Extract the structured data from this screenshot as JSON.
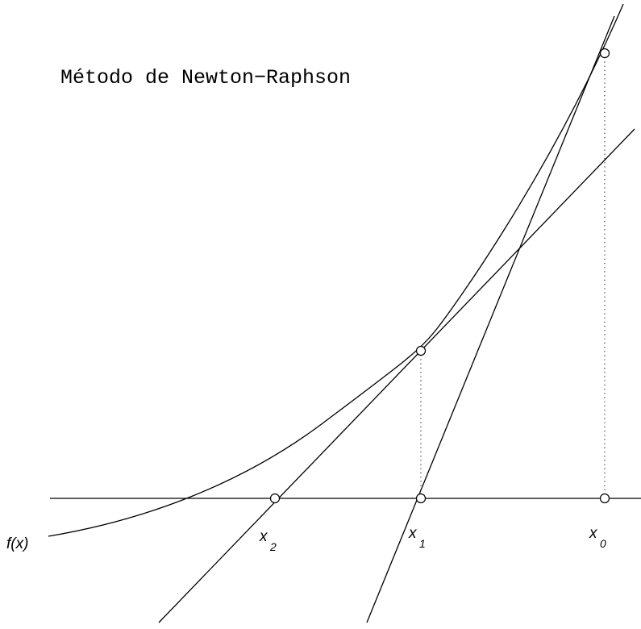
{
  "title": "Método de Newton−Raphson",
  "curve_label": "f(x)",
  "points": [
    {
      "id": "x0",
      "base": "x",
      "sub": "0"
    },
    {
      "id": "x1",
      "base": "x",
      "sub": "1"
    },
    {
      "id": "x2",
      "base": "x",
      "sub": "2"
    }
  ]
}
